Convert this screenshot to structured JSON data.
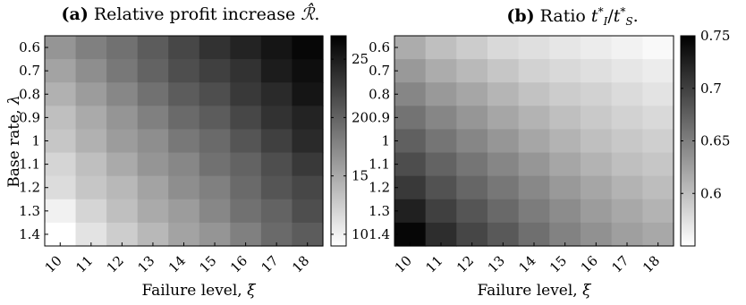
{
  "chart_data": [
    {
      "type": "heatmap",
      "panel_label": "(a)",
      "title": "Relative profit increase ℛ̂.",
      "xlabel": "Failure level, ξ",
      "ylabel": "Base rate, λ",
      "x": [
        "10",
        "11",
        "12",
        "13",
        "14",
        "15",
        "16",
        "17",
        "18"
      ],
      "y": [
        "0.6",
        "0.7",
        "0.8",
        "0.9",
        "1",
        "1.1",
        "1.2",
        "1.3",
        "1.4"
      ],
      "colormap": "gray-reversed",
      "colorbar": {
        "range": [
          9,
          27
        ],
        "ticks": [
          "10",
          "15",
          "20",
          "25"
        ]
      },
      "values": [
        [
          16.5,
          18.0,
          19.0,
          20.5,
          22.0,
          23.5,
          24.5,
          25.5,
          26.5
        ],
        [
          15.5,
          17.0,
          18.5,
          20.0,
          21.5,
          22.5,
          23.5,
          25.0,
          26.0
        ],
        [
          14.5,
          16.0,
          17.5,
          19.0,
          20.5,
          21.5,
          23.0,
          24.0,
          25.5
        ],
        [
          13.5,
          15.0,
          16.5,
          18.0,
          19.5,
          20.5,
          22.0,
          23.5,
          24.5
        ],
        [
          13.0,
          14.5,
          16.0,
          17.0,
          18.5,
          19.5,
          21.0,
          22.5,
          24.0
        ],
        [
          12.0,
          13.5,
          15.0,
          16.5,
          17.5,
          19.0,
          20.0,
          21.5,
          23.0
        ],
        [
          11.5,
          13.0,
          14.0,
          15.5,
          17.0,
          18.0,
          19.5,
          21.0,
          22.0
        ],
        [
          10.0,
          12.0,
          13.5,
          15.0,
          16.0,
          17.5,
          19.0,
          20.0,
          21.5
        ],
        [
          9.0,
          11.0,
          12.5,
          14.0,
          15.5,
          16.5,
          18.0,
          19.5,
          20.5
        ]
      ]
    },
    {
      "type": "heatmap",
      "panel_label": "(b)",
      "title": "Ratio t*_I / t*_S.",
      "xlabel": "Failure level, ξ",
      "ylabel": "",
      "x": [
        "10",
        "11",
        "12",
        "13",
        "14",
        "15",
        "16",
        "17",
        "18"
      ],
      "y": [
        "0.6",
        "0.7",
        "0.8",
        "0.9",
        "1",
        "1.1",
        "1.2",
        "1.3",
        "1.4"
      ],
      "colormap": "gray-reversed",
      "colorbar": {
        "range": [
          0.55,
          0.75
        ],
        "ticks": [
          "0.6",
          "0.65",
          "0.7",
          "0.75"
        ]
      },
      "values": [
        [
          0.615,
          0.6,
          0.59,
          0.58,
          0.575,
          0.57,
          0.565,
          0.56,
          0.555
        ],
        [
          0.63,
          0.615,
          0.605,
          0.595,
          0.585,
          0.58,
          0.575,
          0.57,
          0.565
        ],
        [
          0.645,
          0.63,
          0.62,
          0.608,
          0.598,
          0.59,
          0.585,
          0.578,
          0.572
        ],
        [
          0.66,
          0.645,
          0.632,
          0.62,
          0.61,
          0.6,
          0.592,
          0.585,
          0.58
        ],
        [
          0.675,
          0.658,
          0.645,
          0.632,
          0.62,
          0.61,
          0.6,
          0.593,
          0.588
        ],
        [
          0.69,
          0.672,
          0.658,
          0.645,
          0.632,
          0.62,
          0.61,
          0.6,
          0.595
        ],
        [
          0.705,
          0.686,
          0.67,
          0.657,
          0.643,
          0.63,
          0.62,
          0.61,
          0.602
        ],
        [
          0.725,
          0.7,
          0.683,
          0.668,
          0.653,
          0.64,
          0.628,
          0.618,
          0.61
        ],
        [
          0.745,
          0.715,
          0.695,
          0.68,
          0.663,
          0.648,
          0.636,
          0.625,
          0.618
        ]
      ]
    }
  ]
}
